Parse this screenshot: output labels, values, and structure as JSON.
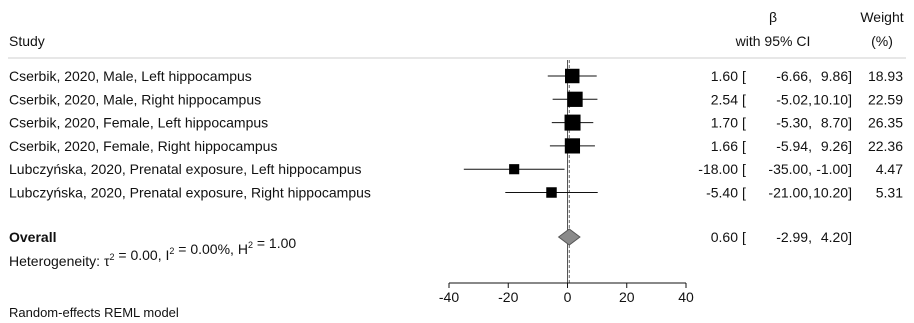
{
  "header": {
    "study": "Study",
    "beta": "β",
    "ci": "with 95% CI",
    "weight": "Weight",
    "weight_unit": "(%)"
  },
  "footer": {
    "heterogeneity": "Heterogeneity: τ² = 0.00, I² = 0.00%, H² = 1.00",
    "model": "Random-effects REML model"
  },
  "chart_data": {
    "type": "forest",
    "xlim": [
      -40,
      40
    ],
    "xticks": [
      "-40",
      "-20",
      "0",
      "20",
      "40"
    ],
    "null_line": 0,
    "studies": [
      {
        "label": "Cserbik, 2020, Male, Left hippocampus",
        "est": 1.6,
        "lo": -6.66,
        "hi": 9.86,
        "weight": 18.93,
        "est_txt": "1.60",
        "lo_txt": "-6.66,",
        "hi_txt": "9.86]",
        "weight_txt": "18.93"
      },
      {
        "label": "Cserbik, 2020, Male, Right hippocampus",
        "est": 2.54,
        "lo": -5.02,
        "hi": 10.1,
        "weight": 22.59,
        "est_txt": "2.54",
        "lo_txt": "-5.02,",
        "hi_txt": "10.10]",
        "weight_txt": "22.59"
      },
      {
        "label": "Cserbik, 2020, Female, Left hippocampus",
        "est": 1.7,
        "lo": -5.3,
        "hi": 8.7,
        "weight": 26.35,
        "est_txt": "1.70",
        "lo_txt": "-5.30,",
        "hi_txt": "8.70]",
        "weight_txt": "26.35"
      },
      {
        "label": "Cserbik, 2020, Female, Right hippocampus",
        "est": 1.66,
        "lo": -5.94,
        "hi": 9.26,
        "weight": 22.36,
        "est_txt": "1.66",
        "lo_txt": "-5.94,",
        "hi_txt": "9.26]",
        "weight_txt": "22.36"
      },
      {
        "label": "Lubczyńska, 2020, Prenatal exposure, Left hippocampus",
        "est": -18.0,
        "lo": -35.0,
        "hi": -1.0,
        "weight": 4.47,
        "est_txt": "-18.00",
        "lo_txt": "-35.00,",
        "hi_txt": "-1.00]",
        "weight_txt": "4.47"
      },
      {
        "label": "Lubczyńska, 2020, Prenatal exposure, Right hippocampus",
        "est": -5.4,
        "lo": -21.0,
        "hi": 10.2,
        "weight": 5.31,
        "est_txt": "-5.40",
        "lo_txt": "-21.00,",
        "hi_txt": "10.20]",
        "weight_txt": "5.31"
      }
    ],
    "overall": {
      "label": "Overall",
      "est": 0.6,
      "lo": -2.99,
      "hi": 4.2,
      "est_txt": "0.60",
      "lo_txt": "-2.99,",
      "hi_txt": "4.20]"
    }
  }
}
